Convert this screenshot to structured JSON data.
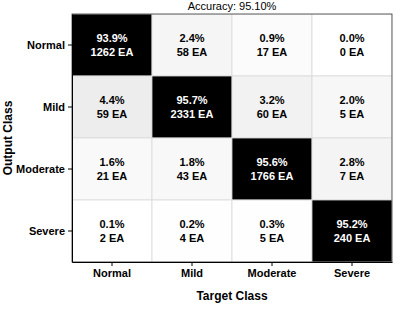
{
  "chart_data": {
    "type": "heatmap",
    "title": "Accuracy: 95.10%",
    "x_label": "Target Class",
    "y_label": "Output Class",
    "categories": [
      "Normal",
      "Mild",
      "Moderate",
      "Severe"
    ],
    "y_categories": [
      "Normal",
      "Mild",
      "Moderate",
      "Severe"
    ],
    "values": [
      [
        93.9,
        2.4,
        0.9,
        0.0
      ],
      [
        4.4,
        95.7,
        3.2,
        2.0
      ],
      [
        1.6,
        1.8,
        95.6,
        2.8
      ],
      [
        0.1,
        0.2,
        0.3,
        95.2
      ]
    ],
    "value_labels": [
      [
        "93.9%",
        "2.4%",
        "0.9%",
        "0.0%"
      ],
      [
        "4.4%",
        "95.7%",
        "3.2%",
        "2.0%"
      ],
      [
        "1.6%",
        "1.8%",
        "95.6%",
        "2.8%"
      ],
      [
        "0.1%",
        "0.2%",
        "0.3%",
        "95.2%"
      ]
    ],
    "counts": [
      [
        1262,
        58,
        17,
        0
      ],
      [
        59,
        2331,
        60,
        5
      ],
      [
        21,
        43,
        1766,
        7
      ],
      [
        2,
        4,
        5,
        240
      ]
    ],
    "count_labels": [
      [
        "1262 EA",
        "58 EA",
        "17 EA",
        "0 EA"
      ],
      [
        "59 EA",
        "2331 EA",
        "60 EA",
        "5 EA"
      ],
      [
        "21 EA",
        "43 EA",
        "1766 EA",
        "7 EA"
      ],
      [
        "2 EA",
        "4 EA",
        "5 EA",
        "240 EA"
      ]
    ]
  }
}
